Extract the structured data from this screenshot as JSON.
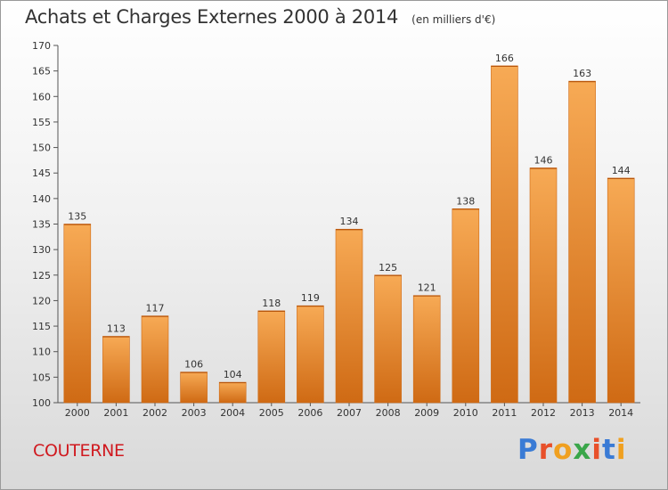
{
  "header": {
    "title": "Achats et Charges Externes 2000 à 2014",
    "unit": "(en milliers d'€)"
  },
  "footer": {
    "town": "COUTERNE",
    "town_color": "#d0191f",
    "brand": "Proxiti",
    "brand_colors": [
      "#3a7bd5",
      "#e8502a",
      "#f0a020",
      "#3aa64a",
      "#e8502a",
      "#3a7bd5",
      "#f0a020"
    ]
  },
  "chart_data": {
    "type": "bar",
    "title": "Achats et Charges Externes 2000 à 2014",
    "subtitle": "(en milliers d'€)",
    "xlabel": "",
    "ylabel": "",
    "categories": [
      "2000",
      "2001",
      "2002",
      "2003",
      "2004",
      "2005",
      "2006",
      "2007",
      "2008",
      "2009",
      "2010",
      "2011",
      "2012",
      "2013",
      "2014"
    ],
    "values": [
      135,
      113,
      117,
      106,
      104,
      118,
      119,
      134,
      125,
      121,
      138,
      166,
      146,
      163,
      144
    ],
    "ylim": [
      100,
      170
    ],
    "yticks": [
      100,
      105,
      110,
      115,
      120,
      125,
      130,
      135,
      140,
      145,
      150,
      155,
      160,
      165,
      170
    ],
    "grid": false,
    "legend": "none",
    "bar_color": "#f08c2c",
    "bar_color_light": "#f7aa55",
    "bar_color_dark": "#cf6a14"
  }
}
